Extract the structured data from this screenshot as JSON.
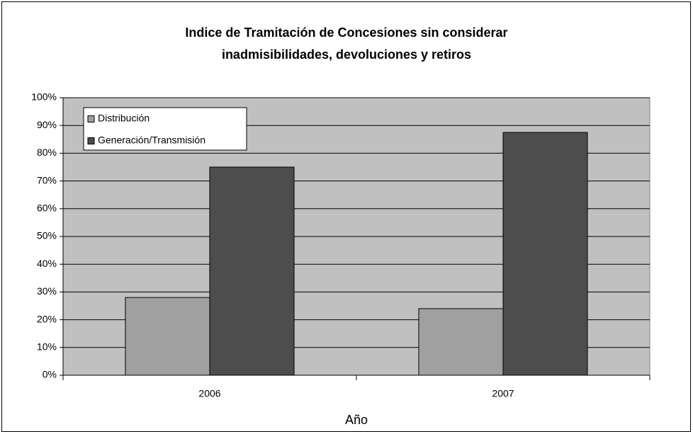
{
  "chart_data": {
    "type": "bar",
    "title": [
      "Indice de Tramitación de Concesiones sin considerar",
      "inadmisibilidades, devoluciones y retiros"
    ],
    "x_label": "Año",
    "categories": [
      "2006",
      "2007"
    ],
    "series": [
      {
        "name": "Distribución",
        "color": "#a0a0a0",
        "values": [
          28,
          24
        ]
      },
      {
        "name": "Generación/Transmisión",
        "color": "#4d4d4d",
        "values": [
          75,
          87.5
        ]
      }
    ],
    "ylim": [
      0,
      100
    ],
    "yticks": [
      {
        "value": 0,
        "label": "0%"
      },
      {
        "value": 10,
        "label": "10%"
      },
      {
        "value": 20,
        "label": "20%"
      },
      {
        "value": 30,
        "label": "30%"
      },
      {
        "value": 40,
        "label": "40%"
      },
      {
        "value": 50,
        "label": "50%"
      },
      {
        "value": 60,
        "label": "60%"
      },
      {
        "value": 70,
        "label": "70%"
      },
      {
        "value": 80,
        "label": "80%"
      },
      {
        "value": 90,
        "label": "90%"
      },
      {
        "value": 100,
        "label": "100%"
      }
    ],
    "grid": true,
    "legend": "top-left"
  }
}
